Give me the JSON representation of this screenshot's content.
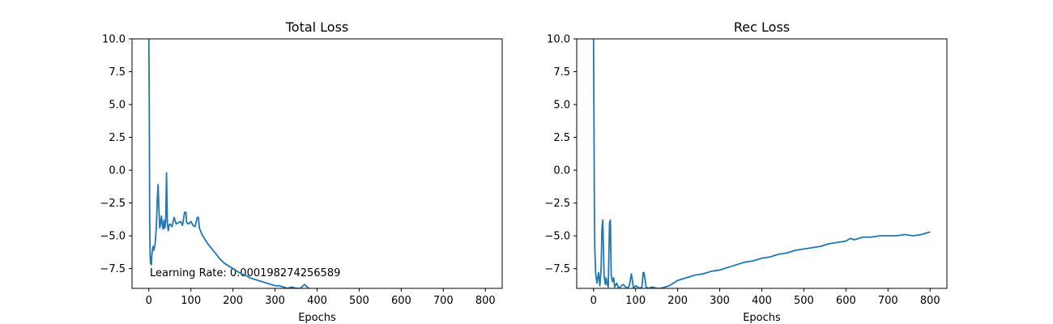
{
  "chart_data": [
    {
      "type": "line",
      "title": "Total Loss",
      "xlabel": "Epochs",
      "ylabel": "",
      "xlim": [
        -40,
        840
      ],
      "ylim": [
        -9,
        10
      ],
      "xticks": [
        0,
        100,
        200,
        300,
        400,
        500,
        600,
        700,
        800
      ],
      "yticks": [
        -7.5,
        -5.0,
        -2.5,
        0.0,
        2.5,
        5.0,
        7.5,
        10.0
      ],
      "xtick_labels": [
        "0",
        "100",
        "200",
        "300",
        "400",
        "500",
        "600",
        "700",
        "800"
      ],
      "ytick_labels": [
        "−7.5",
        "−5.0",
        "−2.5",
        "0.0",
        "2.5",
        "5.0",
        "7.5",
        "10.0"
      ],
      "grid": false,
      "annotation": "Learning Rate: 0.000198274256589",
      "series": [
        {
          "color": "#1f77b4",
          "x": [
            0,
            1,
            2,
            3,
            4,
            5,
            6,
            7,
            8,
            10,
            12,
            15,
            18,
            20,
            22,
            24,
            26,
            28,
            30,
            32,
            34,
            36,
            38,
            40,
            42,
            44,
            46,
            48,
            50,
            55,
            60,
            65,
            70,
            75,
            80,
            85,
            88,
            90,
            95,
            100,
            105,
            110,
            115,
            118,
            120,
            125,
            130,
            140,
            150,
            160,
            170,
            180,
            190,
            200,
            210,
            220,
            230,
            240,
            250,
            260,
            270,
            280,
            290,
            300,
            310,
            320,
            330,
            340,
            350,
            360,
            370,
            380
          ],
          "y": [
            10,
            5,
            -4,
            -6.5,
            -7.1,
            -6.9,
            -7.2,
            -6.5,
            -6.2,
            -5.8,
            -6.1,
            -5.6,
            -4.2,
            -2.3,
            -1.1,
            -3.1,
            -4.4,
            -4.0,
            -3.5,
            -4.2,
            -4.5,
            -3.8,
            -4.4,
            -3.9,
            -0.2,
            -4.0,
            -4.6,
            -4.2,
            -4.1,
            -4.3,
            -3.6,
            -4.1,
            -4.0,
            -3.9,
            -4.2,
            -3.2,
            -3.2,
            -4.0,
            -4.1,
            -3.9,
            -4.2,
            -4.3,
            -3.6,
            -3.6,
            -4.4,
            -4.8,
            -5.1,
            -5.6,
            -6.0,
            -6.4,
            -6.8,
            -7.1,
            -7.3,
            -7.5,
            -7.7,
            -7.9,
            -8.0,
            -8.2,
            -8.3,
            -8.4,
            -8.5,
            -8.6,
            -8.7,
            -8.8,
            -8.8,
            -8.9,
            -9.0,
            -8.9,
            -9.0,
            -9.0,
            -8.7,
            -9.0
          ]
        }
      ]
    },
    {
      "type": "line",
      "title": "Rec Loss",
      "xlabel": "Epochs",
      "ylabel": "",
      "xlim": [
        -40,
        840
      ],
      "ylim": [
        -9,
        10
      ],
      "xticks": [
        0,
        100,
        200,
        300,
        400,
        500,
        600,
        700,
        800
      ],
      "yticks": [
        -7.5,
        -5.0,
        -2.5,
        0.0,
        2.5,
        5.0,
        7.5,
        10.0
      ],
      "xtick_labels": [
        "0",
        "100",
        "200",
        "300",
        "400",
        "500",
        "600",
        "700",
        "800"
      ],
      "ytick_labels": [
        "−7.5",
        "−5.0",
        "−2.5",
        "0.0",
        "2.5",
        "5.0",
        "7.5",
        "10.0"
      ],
      "grid": false,
      "series": [
        {
          "color": "#1f77b4",
          "x": [
            0,
            1,
            2,
            3,
            5,
            8,
            12,
            15,
            18,
            20,
            22,
            25,
            28,
            30,
            32,
            35,
            38,
            40,
            42,
            45,
            48,
            50,
            55,
            60,
            70,
            80,
            85,
            90,
            95,
            100,
            110,
            115,
            118,
            120,
            125,
            130,
            140,
            150,
            160,
            170,
            180,
            190,
            200,
            210,
            220,
            240,
            260,
            280,
            300,
            320,
            340,
            360,
            380,
            400,
            420,
            440,
            460,
            480,
            500,
            520,
            540,
            560,
            580,
            600,
            610,
            620,
            640,
            660,
            680,
            700,
            720,
            740,
            760,
            780,
            790,
            800
          ],
          "y": [
            10,
            4,
            -3,
            -6.0,
            -7.8,
            -8.6,
            -7.8,
            -8.8,
            -7.5,
            -4.5,
            -3.8,
            -8.0,
            -8.7,
            -8.2,
            -8.6,
            -8.9,
            -4.0,
            -3.8,
            -8.0,
            -8.5,
            -8.2,
            -8.9,
            -8.6,
            -9.0,
            -8.7,
            -9.0,
            -8.8,
            -7.9,
            -9.0,
            -8.8,
            -9.0,
            -8.9,
            -7.8,
            -7.8,
            -8.9,
            -9.0,
            -8.9,
            -9.0,
            -9.0,
            -8.9,
            -8.8,
            -8.6,
            -8.4,
            -8.3,
            -8.2,
            -8.0,
            -7.9,
            -7.7,
            -7.6,
            -7.4,
            -7.2,
            -7.0,
            -6.9,
            -6.7,
            -6.6,
            -6.4,
            -6.3,
            -6.1,
            -6.0,
            -5.9,
            -5.8,
            -5.6,
            -5.5,
            -5.4,
            -5.2,
            -5.3,
            -5.1,
            -5.1,
            -5.0,
            -5.0,
            -5.0,
            -4.9,
            -5.0,
            -4.9,
            -4.8,
            -4.7
          ]
        }
      ]
    }
  ]
}
